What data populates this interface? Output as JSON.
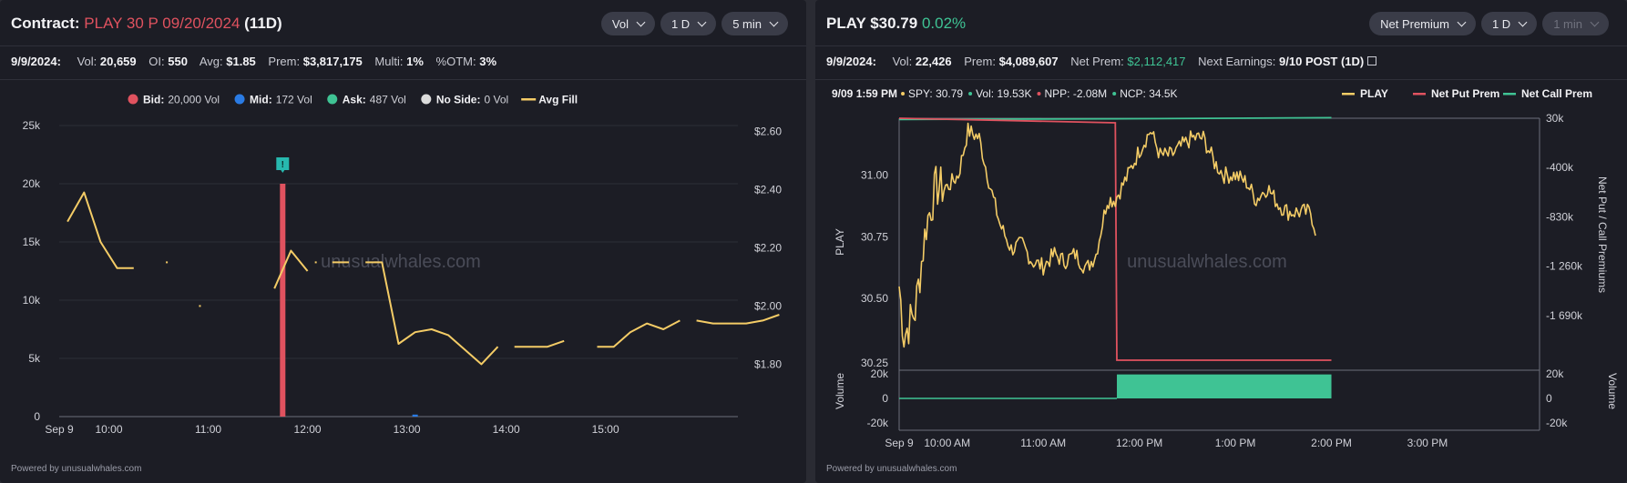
{
  "left": {
    "title_prefix": "Contract:",
    "contract": "PLAY 30 P 09/20/2024",
    "dte": "(11D)",
    "controls": [
      "Vol",
      "1 D",
      "5 min"
    ],
    "stats": {
      "date": "9/9/2024:",
      "vol_label": "Vol:",
      "vol": "20,659",
      "oi_label": "OI:",
      "oi": "550",
      "avg_label": "Avg:",
      "avg": "$1.85",
      "prem_label": "Prem:",
      "prem": "$3,817,175",
      "multi_label": "Multi:",
      "multi": "1%",
      "otm_label": "%OTM:",
      "otm": "3%"
    },
    "legend": [
      {
        "label": "Bid:",
        "value": "20,000 Vol",
        "color": "#e0525f",
        "shape": "dot"
      },
      {
        "label": "Mid:",
        "value": "172 Vol",
        "color": "#2a7be4",
        "shape": "dot"
      },
      {
        "label": "Ask:",
        "value": "487 Vol",
        "color": "#3fc394",
        "shape": "dot"
      },
      {
        "label": "No Side:",
        "value": "0 Vol",
        "color": "#dcdcdc",
        "shape": "dot"
      },
      {
        "label": "Avg Fill",
        "value": "",
        "color": "#f4cc66",
        "shape": "line"
      }
    ],
    "marker_icon": "alert-flag-icon",
    "watermark": "unusualwhales.com",
    "footer": "Powered by unusualwhales.com"
  },
  "right": {
    "ticker": "PLAY",
    "price": "$30.79",
    "change": "0.02%",
    "controls": [
      "Net Premium",
      "1 D",
      "1 min"
    ],
    "stats": {
      "date": "9/9/2024:",
      "vol_label": "Vol:",
      "vol": "22,426",
      "prem_label": "Prem:",
      "prem": "$4,089,607",
      "netprem_label": "Net Prem:",
      "netprem": "$2,112,417",
      "earn_label": "Next Earnings:",
      "earn": "9/10 POST (1D)"
    },
    "hover": {
      "time": "9/09 1:59 PM",
      "spy": "SPY: 30.79",
      "vol": "Vol: 19.53K",
      "npp": "NPP: -2.08M",
      "ncp": "NCP: 34.5K"
    },
    "legend": [
      {
        "label": "PLAY",
        "color": "#f4cc66"
      },
      {
        "label": "Net Put Prem",
        "color": "#e0525f"
      },
      {
        "label": "Net Call Prem",
        "color": "#3fc394"
      }
    ],
    "watermark": "unusualwhales.com",
    "footer": "Powered by unusualwhales.com"
  },
  "chart_data": [
    {
      "type": "line",
      "title": "",
      "x_ticks": [
        "Sep 9",
        "10:00",
        "11:00",
        "12:00",
        "13:00",
        "14:00",
        "15:00"
      ],
      "y_left_ticks": [
        "0",
        "5k",
        "10k",
        "15k",
        "20k",
        "25k"
      ],
      "y_left_range": [
        0,
        25000
      ],
      "y_right_ticks": [
        "$1.80",
        "$2.00",
        "$2.20",
        "$2.40",
        "$2.60"
      ],
      "y_right_range": [
        1.62,
        2.62
      ],
      "bars": [
        {
          "side": "Bid",
          "time": "11:45",
          "volume": 20000,
          "color": "#e0525f"
        },
        {
          "side": "Mid",
          "time": "13:05",
          "volume": 172,
          "color": "#2a7be4"
        }
      ],
      "series": [
        {
          "name": "Avg Fill",
          "color": "#f4cc66",
          "segments": [
            [
              [
                "09:35",
                2.29
              ],
              [
                "09:45",
                2.39
              ],
              [
                "09:55",
                2.22
              ],
              [
                "10:05",
                2.13
              ],
              [
                "10:15",
                2.13
              ]
            ],
            [
              [
                "10:35",
                2.15
              ]
            ],
            [
              [
                "10:55",
                2.0
              ]
            ],
            [
              [
                "11:40",
                2.06
              ],
              [
                "11:50",
                2.19
              ],
              [
                "12:00",
                2.12
              ]
            ],
            [
              [
                "12:05",
                2.15
              ]
            ],
            [
              [
                "12:15",
                2.15
              ],
              [
                "12:25",
                2.15
              ]
            ],
            [
              [
                "12:35",
                2.15
              ],
              [
                "12:45",
                2.15
              ],
              [
                "12:55",
                1.87
              ],
              [
                "13:05",
                1.91
              ],
              [
                "13:15",
                1.92
              ],
              [
                "13:25",
                1.9
              ],
              [
                "13:35",
                1.85
              ],
              [
                "13:45",
                1.8
              ],
              [
                "13:55",
                1.86
              ]
            ],
            [
              [
                "14:05",
                1.86
              ],
              [
                "14:15",
                1.86
              ],
              [
                "14:25",
                1.86
              ],
              [
                "14:35",
                1.88
              ]
            ],
            [
              [
                "14:55",
                1.86
              ],
              [
                "15:05",
                1.86
              ],
              [
                "15:15",
                1.91
              ],
              [
                "15:25",
                1.94
              ],
              [
                "15:35",
                1.92
              ],
              [
                "15:45",
                1.95
              ]
            ],
            [
              [
                "15:55",
                1.95
              ],
              [
                "16:05",
                1.94
              ],
              [
                "16:15",
                1.94
              ],
              [
                "16:25",
                1.94
              ],
              [
                "16:35",
                1.95
              ],
              [
                "16:45",
                1.97
              ]
            ]
          ]
        }
      ]
    },
    {
      "type": "line",
      "title": "",
      "x_ticks": [
        "Sep 9",
        "10:00 AM",
        "11:00 AM",
        "12:00 PM",
        "1:00 PM",
        "2:00 PM",
        "3:00 PM"
      ],
      "y_left_label": "PLAY",
      "y_left_ticks": [
        "30.25",
        "30.50",
        "30.75",
        "31.00"
      ],
      "y_left_range": [
        30.25,
        31.23
      ],
      "y_right_label": "Net Put / Call Premiums",
      "y_right_ticks": [
        "30k",
        "-400k",
        "-830k",
        "-1 260k",
        "-1 690k"
      ],
      "y_right_range": [
        -2080000,
        30000
      ],
      "volume_label": "Volume",
      "volume_ticks": [
        "20k",
        "0",
        "-20k"
      ],
      "volume_range": [
        -20000,
        20000
      ],
      "series": [
        {
          "name": "PLAY",
          "color": "#f4cc66"
        },
        {
          "name": "Net Put Prem",
          "color": "#e0525f",
          "points": [
            [
              "9:30",
              30000
            ],
            [
              "11:45",
              -10000
            ],
            [
              "11:46",
              -2080000
            ],
            [
              "14:00",
              -2080000
            ]
          ]
        },
        {
          "name": "Net Call Prem",
          "color": "#3fc394",
          "points": [
            [
              "9:30",
              20000
            ],
            [
              "11:45",
              25000
            ],
            [
              "14:00",
              34500
            ]
          ]
        },
        {
          "name": "Volume",
          "color": "#3fc394",
          "points": [
            [
              "9:30",
              0
            ],
            [
              "11:45",
              0
            ],
            [
              "11:46",
              19530
            ],
            [
              "14:00",
              19530
            ]
          ]
        }
      ]
    }
  ]
}
